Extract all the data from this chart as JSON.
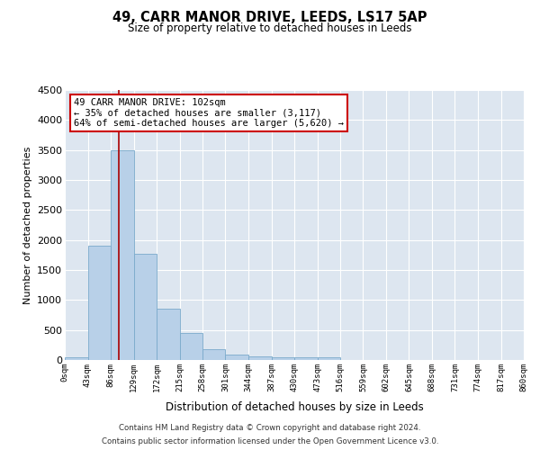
{
  "title": "49, CARR MANOR DRIVE, LEEDS, LS17 5AP",
  "subtitle": "Size of property relative to detached houses in Leeds",
  "xlabel": "Distribution of detached houses by size in Leeds",
  "ylabel": "Number of detached properties",
  "bin_edges": [
    0,
    43,
    86,
    129,
    172,
    215,
    258,
    301,
    344,
    387,
    430,
    473,
    516,
    559,
    602,
    645,
    688,
    731,
    774,
    817,
    860
  ],
  "bar_heights": [
    50,
    1900,
    3500,
    1775,
    850,
    450,
    175,
    90,
    55,
    40,
    40,
    40,
    0,
    0,
    0,
    0,
    0,
    0,
    0,
    0
  ],
  "tick_labels": [
    "0sqm",
    "43sqm",
    "86sqm",
    "129sqm",
    "172sqm",
    "215sqm",
    "258sqm",
    "301sqm",
    "344sqm",
    "387sqm",
    "430sqm",
    "473sqm",
    "516sqm",
    "559sqm",
    "602sqm",
    "645sqm",
    "688sqm",
    "731sqm",
    "774sqm",
    "817sqm",
    "860sqm"
  ],
  "bar_color": "#b8d0e8",
  "bar_edge_color": "#7aaacb",
  "property_line_x": 102,
  "property_line_color": "#aa0000",
  "ylim": [
    0,
    4500
  ],
  "yticks": [
    0,
    500,
    1000,
    1500,
    2000,
    2500,
    3000,
    3500,
    4000,
    4500
  ],
  "annotation_title": "49 CARR MANOR DRIVE: 102sqm",
  "annotation_line1": "← 35% of detached houses are smaller (3,117)",
  "annotation_line2": "64% of semi-detached houses are larger (5,620) →",
  "annotation_box_color": "#cc0000",
  "background_color": "#dde6f0",
  "footer_line1": "Contains HM Land Registry data © Crown copyright and database right 2024.",
  "footer_line2": "Contains public sector information licensed under the Open Government Licence v3.0."
}
